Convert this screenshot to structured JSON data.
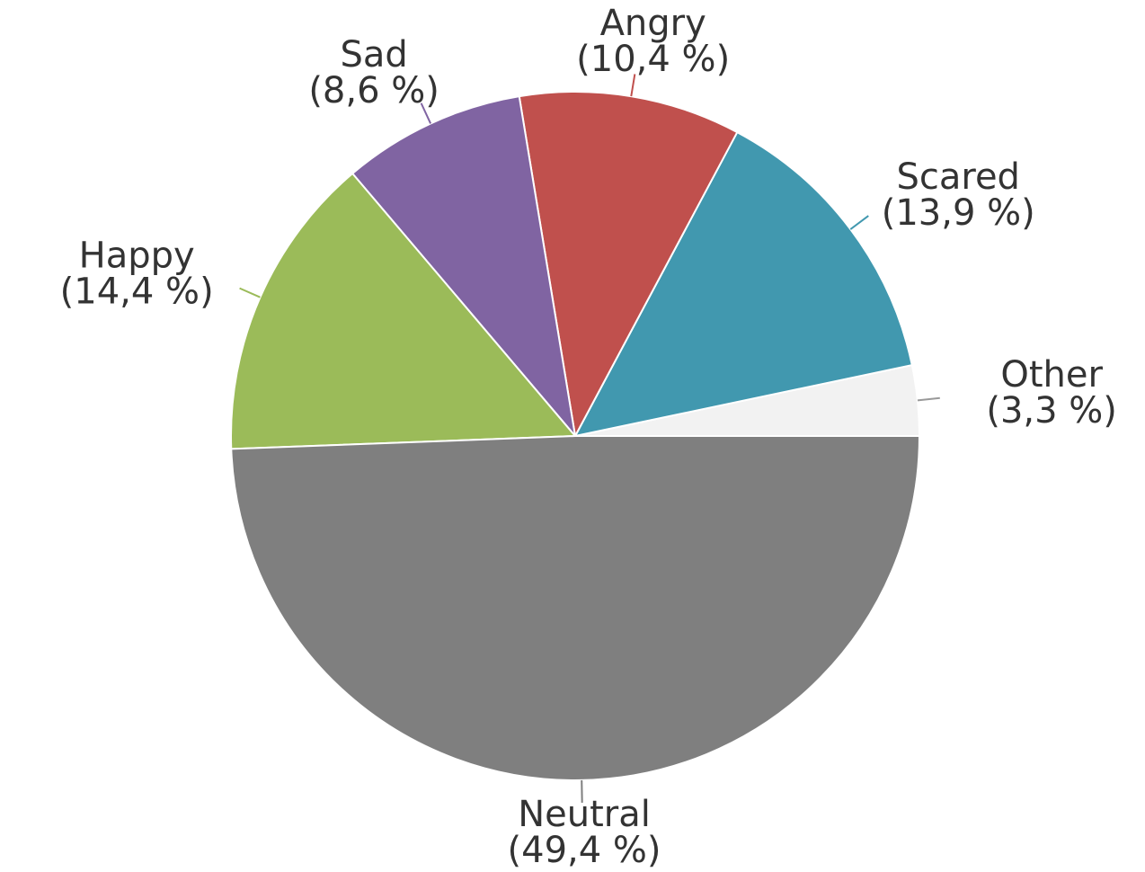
{
  "chart_data": {
    "type": "pie",
    "categories": [
      "Other",
      "Scared",
      "Angry",
      "Sad",
      "Happy",
      "Neutral"
    ],
    "values": [
      3.3,
      13.9,
      10.4,
      8.6,
      14.4,
      49.4
    ],
    "value_labels": [
      "(3,3 %)",
      "(13,9 %)",
      "(10,4 %)",
      "(8,6 %)",
      "(14,4 %)",
      "(49,4 %)"
    ],
    "colors": [
      "#f2f2f2",
      "#4198af",
      "#c0504d",
      "#8064a2",
      "#9bbb59",
      "#7f7f7f"
    ]
  }
}
